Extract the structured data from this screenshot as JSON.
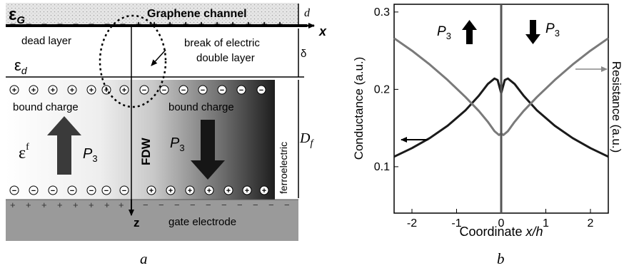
{
  "panel_a": {
    "eps_g": "ε",
    "eps_g_sub": "G",
    "graphene_channel": "Graphene channel",
    "d": "d",
    "x_axis": "x",
    "dead_layer": "dead layer",
    "break_line1": "break of electric",
    "break_line2": "double layer",
    "delta": "δ",
    "eps_d": "ε",
    "eps_d_sub": "d",
    "bound_charge_left": "bound charge",
    "bound_charge_right": "bound charge",
    "ferroelectric": "ferroelectric",
    "D_f": "D",
    "D_f_sub": "f",
    "eps_f": "ε",
    "eps_f_sup": "f",
    "P3_left": "P",
    "P3_left_sub": "3",
    "fdw": "FDW",
    "P3_right": "P",
    "P3_right_sub": "3",
    "z_axis": "z",
    "gate_electrode": "gate electrode",
    "plus_sign": "+",
    "minus_sign": "−",
    "caption": "a"
  },
  "panel_b": {
    "ylabel": "Conductance (a.u.)",
    "ylabel_right": "Resistance (a.u.)",
    "xlabel_text": "Coordinate ",
    "xlabel_italic": "x/h",
    "P3_up": "P",
    "P3_up_sub": "3",
    "P3_down": "P",
    "P3_down_sub": "3",
    "caption": "b"
  },
  "chart_data": {
    "type": "line",
    "xlabel": "Coordinate x/h",
    "ylabel": "Conductance (a.u.)",
    "ylabel_right": "Resistance (a.u.)",
    "xlim": [
      -2.4,
      2.4
    ],
    "ylim": [
      0.04,
      0.31
    ],
    "xticks": [
      -2,
      -1,
      0,
      1,
      2
    ],
    "yticks": [
      0.1,
      0.2,
      0.3
    ],
    "grid": false,
    "series": [
      {
        "color": "#1a1a1a",
        "axis": "left",
        "x": [
          -2.4,
          -2.0,
          -1.6,
          -1.2,
          -0.8,
          -0.5,
          -0.3,
          -0.15,
          -0.08,
          0.0,
          0.08,
          0.15,
          0.3,
          0.5,
          0.8,
          1.2,
          1.6,
          2.0,
          2.4
        ],
        "y": [
          0.113,
          0.124,
          0.137,
          0.153,
          0.173,
          0.192,
          0.207,
          0.214,
          0.212,
          0.195,
          0.212,
          0.214,
          0.207,
          0.192,
          0.173,
          0.153,
          0.137,
          0.124,
          0.113
        ]
      },
      {
        "color": "#7a7a7a",
        "axis": "right",
        "x": [
          -2.4,
          -2.0,
          -1.6,
          -1.2,
          -0.8,
          -0.5,
          -0.3,
          -0.15,
          -0.05,
          0.0,
          0.05,
          0.15,
          0.3,
          0.5,
          0.8,
          1.2,
          1.6,
          2.0,
          2.4
        ],
        "y": [
          0.266,
          0.25,
          0.232,
          0.212,
          0.19,
          0.172,
          0.158,
          0.146,
          0.141,
          0.143,
          0.141,
          0.146,
          0.158,
          0.172,
          0.19,
          0.212,
          0.232,
          0.25,
          0.266
        ]
      }
    ],
    "vertical_line_x": 0.0
  },
  "colors": {
    "black": "#000000",
    "dark_curve": "#1a1a1a",
    "gray_curve": "#7a7a7a",
    "gate": "#9a9a9a",
    "graphene_fill": "#e3e3e3"
  }
}
